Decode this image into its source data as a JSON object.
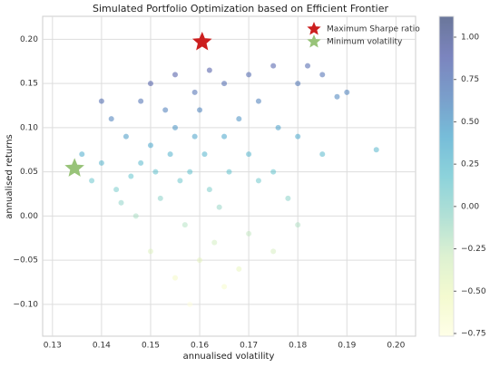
{
  "chart_data": {
    "type": "scatter",
    "title": "Simulated Portfolio Optimization based on Efficient Frontier",
    "xlabel": "annualised volatility",
    "ylabel": "annualised returns",
    "x": [
      0.155,
      0.16,
      0.15,
      0.158,
      0.162,
      0.148,
      0.165,
      0.17,
      0.152,
      0.157,
      0.163,
      0.168,
      0.145,
      0.14,
      0.143,
      0.175,
      0.172,
      0.159,
      0.165,
      0.155,
      0.17,
      0.175,
      0.18,
      0.185,
      0.19,
      0.18,
      0.185,
      0.178,
      0.17,
      0.16,
      0.155,
      0.165,
      0.168,
      0.15,
      0.147,
      0.138,
      0.136,
      0.142,
      0.148,
      0.153,
      0.161,
      0.156,
      0.164,
      0.172,
      0.176,
      0.166,
      0.151,
      0.159,
      0.154,
      0.146,
      0.196,
      0.188,
      0.182,
      0.14,
      0.158,
      0.175,
      0.18,
      0.162,
      0.15,
      0.144
    ],
    "values": [
      0.1,
      0.12,
      0.08,
      0.05,
      0.03,
      0.06,
      0.09,
      0.07,
      0.02,
      -0.01,
      -0.03,
      0.11,
      0.09,
      0.06,
      0.03,
      0.05,
      0.13,
      0.14,
      0.15,
      0.16,
      0.16,
      0.17,
      0.15,
      0.16,
      0.14,
      0.09,
      0.07,
      0.02,
      -0.02,
      -0.05,
      -0.07,
      -0.08,
      -0.06,
      -0.04,
      0.0,
      0.04,
      0.07,
      0.11,
      0.13,
      0.12,
      0.07,
      0.04,
      0.01,
      0.04,
      0.1,
      0.05,
      0.05,
      0.09,
      0.07,
      0.045,
      0.075,
      0.135,
      0.17,
      0.13,
      -0.1,
      -0.04,
      -0.01,
      0.165,
      0.15,
      0.015
    ],
    "color_values": [
      0.52,
      0.63,
      0.4,
      0.19,
      0.06,
      0.27,
      0.42,
      0.29,
      0,
      -0.19,
      -0.31,
      0.54,
      0.48,
      0.29,
      0.07,
      0.17,
      0.64,
      0.75,
      0.79,
      0.9,
      0.82,
      0.86,
      0.72,
      0.76,
      0.63,
      0.39,
      0.27,
      0,
      -0.24,
      -0.44,
      -0.58,
      -0.61,
      -0.48,
      -0.4,
      -0.14,
      0.14,
      0.37,
      0.63,
      0.74,
      0.65,
      0.31,
      0.13,
      -0.06,
      0.12,
      0.45,
      0.18,
      0.2,
      0.44,
      0.32,
      0.17,
      0.28,
      0.61,
      0.82,
      0.79,
      -0.76,
      -0.34,
      -0.17,
      0.9,
      0.87,
      -0.03
    ],
    "colormap": [
      "#ffffd9",
      "#edf8b1",
      "#c7e9b4",
      "#7fcdbb",
      "#41b6c4",
      "#1d91c0",
      "#225ea8",
      "#253494",
      "#081d58"
    ],
    "markers": [
      {
        "name": "Maximum Sharpe ratio",
        "color": "#cc1f1f",
        "x": 0.1605,
        "y": 0.197
      },
      {
        "name": "Minimum volatility",
        "color": "#98c379",
        "x": 0.1345,
        "y": 0.054
      }
    ],
    "legend": "upper right",
    "xlim": [
      0.128,
      0.204
    ],
    "xticks": [
      0.13,
      0.14,
      0.15,
      0.16,
      0.17,
      0.18,
      0.19,
      {
        "value": 0.2,
        "label": "0.20"
      }
    ],
    "ylim": [
      -0.136,
      0.226
    ],
    "yticks": [
      {
        "value": 0.2,
        "label": "0.20"
      },
      0.15,
      {
        "value": 0.1,
        "label": "0.10"
      },
      0.05,
      {
        "value": 0,
        "label": "0.00"
      },
      {
        "value": -0.05,
        "label": "−0.05"
      },
      {
        "value": -0.1,
        "label": "−0.10"
      }
    ],
    "clim": [
      -0.766,
      1.123
    ],
    "cticks": [
      {
        "value": 1,
        "label": "1.00"
      },
      0.75,
      {
        "value": 0.5,
        "label": "0.50"
      },
      0.25,
      {
        "value": 0,
        "label": "0.00"
      },
      {
        "value": -0.25,
        "label": "−0.25"
      },
      {
        "value": -0.5,
        "label": "−0.50"
      },
      {
        "value": -0.75,
        "label": "−0.75"
      }
    ],
    "grid": true
  }
}
